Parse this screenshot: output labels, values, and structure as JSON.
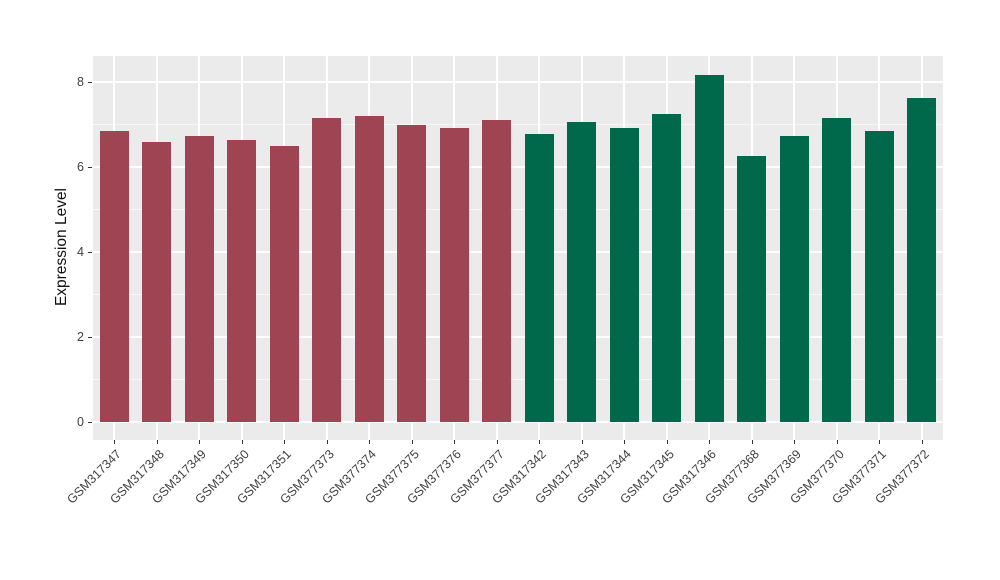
{
  "chart_data": {
    "type": "bar",
    "title": "",
    "xlabel": "",
    "ylabel": "Expression Level",
    "categories": [
      "GSM317347",
      "GSM317348",
      "GSM317349",
      "GSM317350",
      "GSM317351",
      "GSM377373",
      "GSM377374",
      "GSM377375",
      "GSM377376",
      "GSM377377",
      "GSM317342",
      "GSM317343",
      "GSM317344",
      "GSM317345",
      "GSM317346",
      "GSM377368",
      "GSM377369",
      "GSM377370",
      "GSM377371",
      "GSM377372"
    ],
    "values": [
      6.85,
      6.6,
      6.74,
      6.64,
      6.5,
      7.15,
      7.19,
      6.98,
      6.92,
      7.1,
      6.78,
      7.06,
      6.92,
      7.24,
      8.17,
      6.27,
      6.74,
      7.15,
      6.85,
      7.63
    ],
    "bar_groups": [
      0,
      0,
      0,
      0,
      0,
      0,
      0,
      0,
      0,
      0,
      1,
      1,
      1,
      1,
      1,
      1,
      1,
      1,
      1,
      1
    ],
    "group_colors": [
      "#9E4452",
      "#00694C"
    ],
    "yticks": [
      0,
      2,
      4,
      6,
      8
    ],
    "y_minor_ticks": [
      1,
      3,
      5,
      7
    ],
    "ylim": [
      0,
      8.6
    ],
    "xticklabel_rotation": 45,
    "legend": "none",
    "grid": "white major+minor horizontal, white major vertical at category centers",
    "panel_background": "#EBEBEB",
    "gridline_color": "#FFFFFF",
    "axis_text_color": "#404040"
  }
}
